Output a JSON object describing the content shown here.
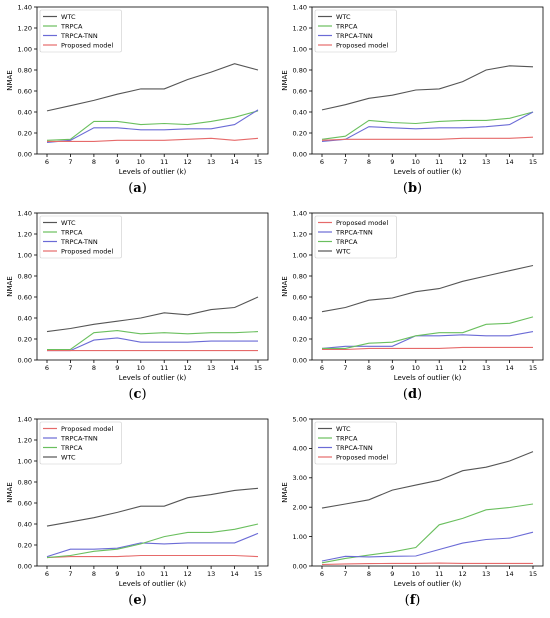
{
  "chart_data": [
    {
      "type": "line",
      "panel_label": "a",
      "x": [
        6,
        7,
        8,
        9,
        10,
        11,
        12,
        13,
        14,
        15
      ],
      "xlabel": "Levels of outlier (k)",
      "ylabel": "NMAE",
      "ylim": [
        0,
        1.4
      ],
      "yticks": [
        "0.00",
        "0.20",
        "0.40",
        "0.60",
        "0.80",
        "1.00",
        "1.20",
        "1.40"
      ],
      "legend_position": "top-left",
      "series": [
        {
          "name": "WTC",
          "color": "#555555",
          "values": [
            0.41,
            0.46,
            0.51,
            0.57,
            0.62,
            0.62,
            0.71,
            0.78,
            0.86,
            0.8
          ]
        },
        {
          "name": "TRPCA",
          "color": "#6abf5e",
          "values": [
            0.13,
            0.14,
            0.31,
            0.31,
            0.28,
            0.29,
            0.28,
            0.31,
            0.35,
            0.41
          ]
        },
        {
          "name": "TRPCA-TNN",
          "color": "#6b6bd6",
          "values": [
            0.11,
            0.13,
            0.25,
            0.25,
            0.23,
            0.23,
            0.24,
            0.24,
            0.28,
            0.42
          ]
        },
        {
          "name": "Proposed model",
          "color": "#e66a6a",
          "values": [
            0.12,
            0.12,
            0.12,
            0.13,
            0.13,
            0.13,
            0.14,
            0.15,
            0.13,
            0.15
          ]
        }
      ]
    },
    {
      "type": "line",
      "panel_label": "b",
      "x": [
        6,
        7,
        8,
        9,
        10,
        11,
        12,
        13,
        14,
        15
      ],
      "xlabel": "Levels of outlier (k)",
      "ylabel": "NMAE",
      "ylim": [
        0,
        1.4
      ],
      "yticks": [
        "0.00",
        "0.20",
        "0.40",
        "0.60",
        "0.80",
        "1.00",
        "1.20",
        "1.40"
      ],
      "legend_position": "top-left",
      "series": [
        {
          "name": "WTC",
          "color": "#555555",
          "values": [
            0.42,
            0.47,
            0.53,
            0.56,
            0.61,
            0.62,
            0.69,
            0.8,
            0.84,
            0.83
          ]
        },
        {
          "name": "TRPCA",
          "color": "#6abf5e",
          "values": [
            0.14,
            0.17,
            0.32,
            0.3,
            0.29,
            0.31,
            0.32,
            0.32,
            0.34,
            0.4
          ]
        },
        {
          "name": "TRPCA-TNN",
          "color": "#6b6bd6",
          "values": [
            0.12,
            0.14,
            0.26,
            0.25,
            0.24,
            0.25,
            0.25,
            0.26,
            0.28,
            0.4
          ]
        },
        {
          "name": "Proposed model",
          "color": "#e66a6a",
          "values": [
            0.13,
            0.14,
            0.14,
            0.14,
            0.14,
            0.14,
            0.15,
            0.15,
            0.15,
            0.16
          ]
        }
      ]
    },
    {
      "type": "line",
      "panel_label": "c",
      "x": [
        6,
        7,
        8,
        9,
        10,
        11,
        12,
        13,
        14,
        15
      ],
      "xlabel": "Levels of outlier (k)",
      "ylabel": "NMAE",
      "ylim": [
        0,
        1.4
      ],
      "yticks": [
        "0.00",
        "0.20",
        "0.40",
        "0.60",
        "0.80",
        "1.00",
        "1.20",
        "1.40"
      ],
      "legend_position": "top-left",
      "series": [
        {
          "name": "WTC",
          "color": "#555555",
          "values": [
            0.27,
            0.3,
            0.34,
            0.37,
            0.4,
            0.45,
            0.43,
            0.48,
            0.5,
            0.6
          ]
        },
        {
          "name": "TRPCA",
          "color": "#6abf5e",
          "values": [
            0.1,
            0.1,
            0.26,
            0.28,
            0.25,
            0.26,
            0.25,
            0.26,
            0.26,
            0.27
          ]
        },
        {
          "name": "TRPCA-TNN",
          "color": "#6b6bd6",
          "values": [
            0.09,
            0.09,
            0.19,
            0.21,
            0.17,
            0.17,
            0.17,
            0.18,
            0.18,
            0.18
          ]
        },
        {
          "name": "Proposed model",
          "color": "#e66a6a",
          "values": [
            0.09,
            0.09,
            0.09,
            0.09,
            0.09,
            0.09,
            0.09,
            0.09,
            0.09,
            0.09
          ]
        }
      ]
    },
    {
      "type": "line",
      "panel_label": "d",
      "x": [
        6,
        7,
        8,
        9,
        10,
        11,
        12,
        13,
        14,
        15
      ],
      "xlabel": "Levels of outlier (k)",
      "ylabel": "NMAE",
      "ylim": [
        0,
        1.4
      ],
      "yticks": [
        "0.00",
        "0.20",
        "0.40",
        "0.60",
        "0.80",
        "1.00",
        "1.20",
        "1.40"
      ],
      "legend_position": "top-left",
      "series": [
        {
          "name": "Proposed model",
          "color": "#e66a6a",
          "values": [
            0.1,
            0.1,
            0.11,
            0.11,
            0.11,
            0.11,
            0.12,
            0.12,
            0.12,
            0.12
          ]
        },
        {
          "name": "TRPCA-TNN",
          "color": "#6b6bd6",
          "values": [
            0.11,
            0.13,
            0.13,
            0.13,
            0.23,
            0.23,
            0.24,
            0.23,
            0.23,
            0.27
          ]
        },
        {
          "name": "TRPCA",
          "color": "#6abf5e",
          "values": [
            0.11,
            0.11,
            0.16,
            0.17,
            0.23,
            0.26,
            0.26,
            0.34,
            0.35,
            0.41
          ]
        },
        {
          "name": "WTC",
          "color": "#555555",
          "values": [
            0.46,
            0.5,
            0.57,
            0.59,
            0.65,
            0.68,
            0.75,
            0.8,
            0.85,
            0.9
          ]
        }
      ]
    },
    {
      "type": "line",
      "panel_label": "e",
      "x": [
        6,
        7,
        8,
        9,
        10,
        11,
        12,
        13,
        14,
        15
      ],
      "xlabel": "Levels of outlier (k)",
      "ylabel": "NMAE",
      "ylim": [
        0,
        1.4
      ],
      "yticks": [
        "0.00",
        "0.20",
        "0.40",
        "0.60",
        "0.80",
        "1.00",
        "1.20",
        "1.40"
      ],
      "legend_position": "top-left",
      "series": [
        {
          "name": "Proposed model",
          "color": "#e66a6a",
          "values": [
            0.08,
            0.09,
            0.09,
            0.09,
            0.1,
            0.1,
            0.1,
            0.1,
            0.1,
            0.09
          ]
        },
        {
          "name": "TRPCA-TNN",
          "color": "#6b6bd6",
          "values": [
            0.09,
            0.16,
            0.16,
            0.17,
            0.22,
            0.21,
            0.22,
            0.22,
            0.22,
            0.31
          ]
        },
        {
          "name": "TRPCA",
          "color": "#6abf5e",
          "values": [
            0.08,
            0.1,
            0.14,
            0.16,
            0.21,
            0.28,
            0.32,
            0.32,
            0.35,
            0.4
          ]
        },
        {
          "name": "WTC",
          "color": "#555555",
          "values": [
            0.38,
            0.42,
            0.46,
            0.51,
            0.57,
            0.57,
            0.65,
            0.68,
            0.72,
            0.74
          ]
        }
      ]
    },
    {
      "type": "line",
      "panel_label": "f",
      "x": [
        6,
        7,
        8,
        9,
        10,
        11,
        12,
        13,
        14,
        15
      ],
      "xlabel": "Levels of outlier (k)",
      "ylabel": "NMAE",
      "ylim": [
        0,
        5
      ],
      "yticks": [
        "0.00",
        "1.00",
        "2.00",
        "3.00",
        "4.00",
        "5.00"
      ],
      "legend_position": "top-left",
      "series": [
        {
          "name": "WTC",
          "color": "#555555",
          "values": [
            1.97,
            2.11,
            2.25,
            2.58,
            2.75,
            2.92,
            3.24,
            3.36,
            3.57,
            3.89
          ]
        },
        {
          "name": "TRPCA",
          "color": "#6abf5e",
          "values": [
            0.11,
            0.26,
            0.37,
            0.48,
            0.63,
            1.4,
            1.62,
            1.91,
            1.99,
            2.11
          ]
        },
        {
          "name": "TRPCA-TNN",
          "color": "#6b6bd6",
          "values": [
            0.17,
            0.33,
            0.31,
            0.33,
            0.34,
            0.56,
            0.78,
            0.9,
            0.95,
            1.15
          ]
        },
        {
          "name": "Proposed model",
          "color": "#e66a6a",
          "values": [
            0.05,
            0.07,
            0.08,
            0.09,
            0.09,
            0.1,
            0.09,
            0.09,
            0.09,
            0.09
          ]
        }
      ]
    }
  ]
}
